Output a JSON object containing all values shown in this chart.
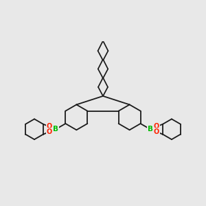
{
  "bg_color": "#e8e8e8",
  "bond_color": "#1a1a1a",
  "B_color": "#00bb00",
  "O_color": "#ff2200",
  "lw": 1.3,
  "fig_size": [
    3.0,
    3.0
  ],
  "dpi": 100,
  "xlim": [
    0,
    10
  ],
  "ylim": [
    0,
    10
  ]
}
